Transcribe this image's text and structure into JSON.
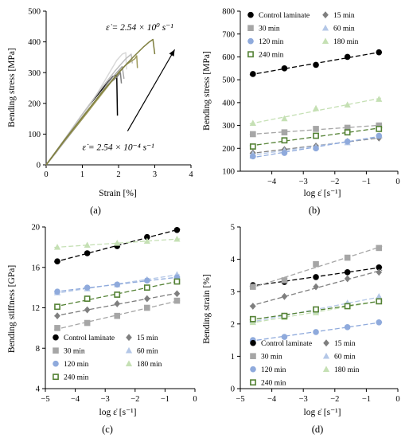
{
  "colors": {
    "axis": "#000000",
    "arrow": "#000000",
    "control": "#000000",
    "15 min": "#7f7f7f",
    "30 min": "#a6a6a6",
    "60 min": "#b4c7e7",
    "120 min": "#8faadc",
    "180 min": "#c5e0b4",
    "240 min": "#548235"
  },
  "chart_data": [
    {
      "id": "a",
      "type": "line",
      "panel_label": "(a)",
      "xlabel": "Strain [%]",
      "ylabel": "Bending stress [MPa]",
      "xlim": [
        0,
        4
      ],
      "ylim": [
        0,
        500
      ],
      "xticks": [
        0,
        1,
        2,
        3,
        4
      ],
      "yticks": [
        0,
        100,
        200,
        300,
        400,
        500
      ],
      "grid": false,
      "annotations": [
        {
          "text": "ε̇ = 2.54 × 10⁰ s⁻¹",
          "x": 1.65,
          "y": 438
        },
        {
          "text": "ε̇ = 2.54 × 10⁻⁴ s⁻¹",
          "x": 1.0,
          "y": 48
        }
      ],
      "arrow": {
        "from": [
          2.25,
          110
        ],
        "to": [
          3.55,
          375
        ]
      },
      "series": [
        {
          "color": "#000000",
          "points": [
            [
              0,
              0
            ],
            [
              0.3,
              45
            ],
            [
              0.6,
              95
            ],
            [
              0.9,
              145
            ],
            [
              1.2,
              195
            ],
            [
              1.5,
              240
            ],
            [
              1.7,
              268
            ],
            [
              1.85,
              288
            ],
            [
              1.95,
              292
            ],
            [
              1.97,
              160
            ]
          ]
        },
        {
          "color": "#7f7f7f",
          "points": [
            [
              0,
              0
            ],
            [
              0.4,
              60
            ],
            [
              0.8,
              120
            ],
            [
              1.2,
              180
            ],
            [
              1.5,
              230
            ],
            [
              1.75,
              265
            ],
            [
              1.95,
              285
            ],
            [
              2.05,
              300
            ],
            [
              2.08,
              265
            ]
          ]
        },
        {
          "color": "#a6a6a6",
          "points": [
            [
              0,
              0
            ],
            [
              0.5,
              75
            ],
            [
              1.0,
              150
            ],
            [
              1.4,
              215
            ],
            [
              1.7,
              265
            ],
            [
              1.95,
              300
            ],
            [
              2.1,
              320
            ],
            [
              2.15,
              280
            ]
          ]
        },
        {
          "color": "#d9d9d9",
          "points": [
            [
              0,
              0
            ],
            [
              0.5,
              80
            ],
            [
              1.0,
              160
            ],
            [
              1.4,
              230
            ],
            [
              1.7,
              290
            ],
            [
              1.95,
              340
            ],
            [
              2.1,
              360
            ],
            [
              2.2,
              365
            ],
            [
              2.22,
              310
            ]
          ]
        },
        {
          "color": "#bfbfbf",
          "points": [
            [
              0,
              0
            ],
            [
              0.5,
              82
            ],
            [
              1.0,
              165
            ],
            [
              1.5,
              245
            ],
            [
              1.9,
              305
            ],
            [
              2.2,
              345
            ],
            [
              2.35,
              360
            ],
            [
              2.38,
              330
            ]
          ]
        },
        {
          "color": "#9e9a5a",
          "points": [
            [
              0,
              0
            ],
            [
              0.5,
              78
            ],
            [
              1.0,
              150
            ],
            [
              1.5,
              225
            ],
            [
              1.9,
              285
            ],
            [
              2.2,
              325
            ],
            [
              2.45,
              345
            ],
            [
              2.5,
              355
            ],
            [
              2.52,
              315
            ]
          ]
        },
        {
          "color": "#7f7f3f",
          "points": [
            [
              0,
              0
            ],
            [
              0.5,
              80
            ],
            [
              1.0,
              155
            ],
            [
              1.5,
              230
            ],
            [
              2.0,
              300
            ],
            [
              2.4,
              350
            ],
            [
              2.7,
              385
            ],
            [
              2.85,
              400
            ],
            [
              2.95,
              408
            ],
            [
              3.0,
              360
            ]
          ]
        }
      ]
    },
    {
      "id": "b",
      "type": "scatter",
      "panel_label": "(b)",
      "xlabel": "log ε̇ [s⁻¹]",
      "ylabel": "Bending stress [MPa]",
      "xlim": [
        -5,
        0
      ],
      "ylim": [
        100,
        800
      ],
      "xticks": [
        -4,
        -3,
        -2,
        -1,
        0
      ],
      "yticks": [
        100,
        200,
        300,
        400,
        500,
        600,
        700,
        800
      ],
      "grid": false,
      "legend": "top, two columns",
      "x": [
        -4.6,
        -3.6,
        -2.6,
        -1.6,
        -0.6
      ],
      "series": [
        {
          "name": "Control laminate",
          "marker": "circle",
          "color": "#000000",
          "values": [
            525,
            550,
            565,
            600,
            620
          ]
        },
        {
          "name": "15 min",
          "marker": "diamond",
          "color": "#7f7f7f",
          "values": [
            180,
            195,
            210,
            230,
            245
          ]
        },
        {
          "name": "30 min",
          "marker": "square",
          "color": "#a6a6a6",
          "values": [
            262,
            270,
            285,
            290,
            300
          ]
        },
        {
          "name": "60 min",
          "marker": "triangle",
          "color": "#b4c7e7",
          "values": [
            175,
            190,
            205,
            225,
            255
          ]
        },
        {
          "name": "120 min",
          "marker": "circle",
          "color": "#8faadc",
          "values": [
            165,
            180,
            200,
            230,
            255
          ]
        },
        {
          "name": "180 min",
          "marker": "triangle",
          "color": "#c5e0b4",
          "values": [
            310,
            330,
            375,
            390,
            415
          ]
        },
        {
          "name": "240 min",
          "marker": "square-open",
          "color": "#548235",
          "values": [
            208,
            235,
            255,
            270,
            285
          ]
        }
      ]
    },
    {
      "id": "c",
      "type": "scatter",
      "panel_label": "(c)",
      "xlabel": "log ε̇ [s⁻¹]",
      "ylabel": "Bending stiffness [GPa]",
      "xlim": [
        -5,
        0
      ],
      "ylim": [
        4,
        20
      ],
      "xticks": [
        -5,
        -4,
        -3,
        -2,
        -1,
        0
      ],
      "yticks": [
        4,
        8,
        12,
        16,
        20
      ],
      "grid": false,
      "legend": "bottom, two columns",
      "x": [
        -4.6,
        -3.6,
        -2.6,
        -1.6,
        -0.6
      ],
      "series": [
        {
          "name": "Control laminate",
          "marker": "circle",
          "color": "#000000",
          "values": [
            16.6,
            17.4,
            18.1,
            19.0,
            19.7
          ]
        },
        {
          "name": "15 min",
          "marker": "diamond",
          "color": "#7f7f7f",
          "values": [
            11.2,
            11.8,
            12.4,
            12.9,
            13.4
          ]
        },
        {
          "name": "30 min",
          "marker": "square",
          "color": "#a6a6a6",
          "values": [
            10.0,
            10.5,
            11.2,
            12.0,
            12.7
          ]
        },
        {
          "name": "60 min",
          "marker": "triangle",
          "color": "#b4c7e7",
          "values": [
            13.5,
            13.9,
            14.3,
            14.8,
            15.3
          ]
        },
        {
          "name": "120 min",
          "marker": "circle",
          "color": "#8faadc",
          "values": [
            13.6,
            14.0,
            14.3,
            14.7,
            15.0
          ]
        },
        {
          "name": "180 min",
          "marker": "triangle",
          "color": "#c5e0b4",
          "values": [
            18.0,
            18.2,
            18.4,
            18.6,
            18.8
          ]
        },
        {
          "name": "240 min",
          "marker": "square-open",
          "color": "#548235",
          "values": [
            12.1,
            12.9,
            13.3,
            14.0,
            14.6
          ]
        }
      ]
    },
    {
      "id": "d",
      "type": "scatter",
      "panel_label": "(d)",
      "xlabel": "log ε̇ [s⁻¹]",
      "ylabel": "Bending strain [%]",
      "xlim": [
        -5,
        0
      ],
      "ylim": [
        0,
        5
      ],
      "xticks": [
        -5,
        -4,
        -3,
        -2,
        -1,
        0
      ],
      "yticks": [
        0,
        1,
        2,
        3,
        4,
        5
      ],
      "grid": false,
      "legend": "bottom, two columns",
      "x": [
        -4.6,
        -3.6,
        -2.6,
        -1.6,
        -0.6
      ],
      "series": [
        {
          "name": "Control laminate",
          "marker": "circle",
          "color": "#000000",
          "values": [
            3.2,
            3.3,
            3.45,
            3.6,
            3.75
          ]
        },
        {
          "name": "15 min",
          "marker": "diamond",
          "color": "#7f7f7f",
          "values": [
            2.55,
            2.85,
            3.15,
            3.4,
            3.6
          ]
        },
        {
          "name": "30 min",
          "marker": "square",
          "color": "#a6a6a6",
          "values": [
            3.15,
            3.35,
            3.85,
            4.05,
            4.35
          ]
        },
        {
          "name": "60 min",
          "marker": "triangle",
          "color": "#b4c7e7",
          "values": [
            2.1,
            2.25,
            2.4,
            2.65,
            2.85
          ]
        },
        {
          "name": "120 min",
          "marker": "circle",
          "color": "#8faadc",
          "values": [
            1.5,
            1.6,
            1.75,
            1.9,
            2.05
          ]
        },
        {
          "name": "180 min",
          "marker": "triangle",
          "color": "#c5e0b4",
          "values": [
            2.05,
            2.2,
            2.35,
            2.55,
            2.7
          ]
        },
        {
          "name": "240 min",
          "marker": "square-open",
          "color": "#548235",
          "values": [
            2.15,
            2.25,
            2.45,
            2.55,
            2.7
          ]
        }
      ]
    }
  ]
}
